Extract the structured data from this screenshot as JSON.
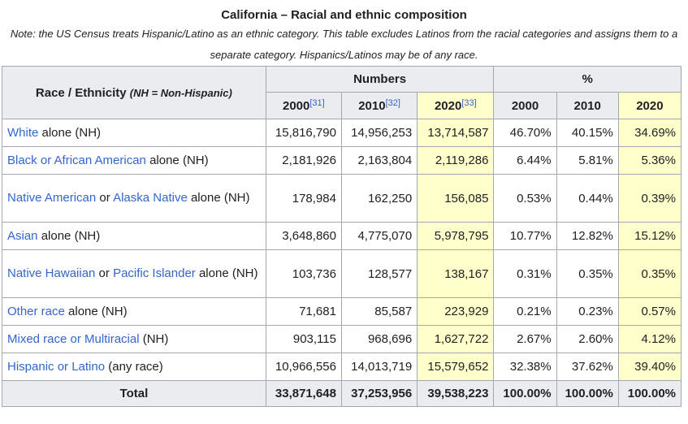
{
  "title": "California – Racial and ethnic composition",
  "note": "Note: the US Census treats Hispanic/Latino as an ethnic category. This table excludes Latinos from the racial categories and assigns them to a separate category. Hispanics/Latinos may be of any race.",
  "header": {
    "race_label": "Race / Ethnicity",
    "race_note": "(NH = Non-Hispanic)",
    "numbers_group": "Numbers",
    "pct_group": "%",
    "years": [
      {
        "label": "2000",
        "ref": "[31]"
      },
      {
        "label": "2010",
        "ref": "[32]"
      },
      {
        "label": "2020",
        "ref": "[33]"
      }
    ],
    "pct_years": [
      "2000",
      "2010",
      "2020"
    ]
  },
  "rows": [
    {
      "parts": [
        {
          "text": "White",
          "link": true
        },
        {
          "text": " alone (NH)",
          "link": false
        }
      ],
      "values": [
        "15,816,790",
        "14,956,253",
        "13,714,587",
        "46.70%",
        "40.15%",
        "34.69%"
      ]
    },
    {
      "parts": [
        {
          "text": "Black or African American",
          "link": true
        },
        {
          "text": " alone (NH)",
          "link": false
        }
      ],
      "values": [
        "2,181,926",
        "2,163,804",
        "2,119,286",
        "6.44%",
        "5.81%",
        "5.36%"
      ]
    },
    {
      "parts": [
        {
          "text": "Native American",
          "link": true
        },
        {
          "text": " or ",
          "link": false
        },
        {
          "text": "Alaska Native",
          "link": true
        },
        {
          "text": " alone (NH)",
          "link": false
        }
      ],
      "values": [
        "178,984",
        "162,250",
        "156,085",
        "0.53%",
        "0.44%",
        "0.39%"
      ]
    },
    {
      "parts": [
        {
          "text": "Asian",
          "link": true
        },
        {
          "text": " alone (NH)",
          "link": false
        }
      ],
      "values": [
        "3,648,860",
        "4,775,070",
        "5,978,795",
        "10.77%",
        "12.82%",
        "15.12%"
      ]
    },
    {
      "parts": [
        {
          "text": "Native Hawaiian",
          "link": true
        },
        {
          "text": " or ",
          "link": false
        },
        {
          "text": "Pacific Islander",
          "link": true
        },
        {
          "text": " alone (NH)",
          "link": false
        }
      ],
      "values": [
        "103,736",
        "128,577",
        "138,167",
        "0.31%",
        "0.35%",
        "0.35%"
      ]
    },
    {
      "parts": [
        {
          "text": "Other race",
          "link": true
        },
        {
          "text": " alone (NH)",
          "link": false
        }
      ],
      "values": [
        "71,681",
        "85,587",
        "223,929",
        "0.21%",
        "0.23%",
        "0.57%"
      ]
    },
    {
      "parts": [
        {
          "text": "Mixed race or Multiracial",
          "link": true
        },
        {
          "text": " (NH)",
          "link": false
        }
      ],
      "values": [
        "903,115",
        "968,696",
        "1,627,722",
        "2.67%",
        "2.60%",
        "4.12%"
      ]
    },
    {
      "parts": [
        {
          "text": "Hispanic or Latino",
          "link": true
        },
        {
          "text": " (any race)",
          "link": false
        }
      ],
      "values": [
        "10,966,556",
        "14,013,719",
        "15,579,652",
        "32.38%",
        "37.62%",
        "39.40%"
      ]
    }
  ],
  "total": {
    "label": "Total",
    "values": [
      "33,871,648",
      "37,253,956",
      "39,538,223",
      "100.00%",
      "100.00%",
      "100.00%"
    ]
  },
  "colors": {
    "highlight": "#ffffcc",
    "header_bg": "#eaecf0",
    "link": "#3366cc",
    "border": "#a2a9b1"
  }
}
